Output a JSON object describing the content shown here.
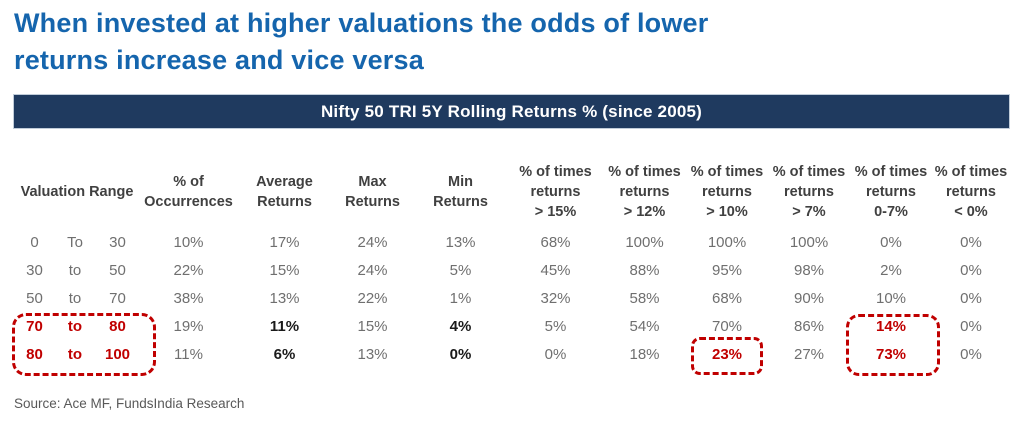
{
  "title": "When invested at higher valuations the odds of lower\nreturns increase and vice versa",
  "banner": {
    "text": "Nifty 50 TRI 5Y Rolling Returns % (since 2005)"
  },
  "table": {
    "range_header": "Valuation Range",
    "column_headers": [
      [
        "% of",
        "Occurrences"
      ],
      [
        "Average",
        "Returns"
      ],
      [
        "Max",
        "Returns"
      ],
      [
        "Min",
        "Returns"
      ],
      [
        "% of times",
        "returns",
        "> 15%"
      ],
      [
        "% of times",
        "returns",
        "> 12%"
      ],
      [
        "% of times",
        "returns",
        "> 10%"
      ],
      [
        "% of times",
        "returns",
        "> 7%"
      ],
      [
        "% of times",
        "returns",
        "0-7%"
      ],
      [
        "% of times",
        "returns",
        "< 0%"
      ]
    ],
    "rows": [
      {
        "range": [
          "0",
          "To",
          "30"
        ],
        "range_style": "normal",
        "values": [
          "10%",
          "17%",
          "24%",
          "13%",
          "68%",
          "100%",
          "100%",
          "100%",
          "0%",
          "0%"
        ],
        "bold_values": [],
        "red_values": []
      },
      {
        "range": [
          "30",
          "to",
          "50"
        ],
        "range_style": "normal",
        "values": [
          "22%",
          "15%",
          "24%",
          "5%",
          "45%",
          "88%",
          "95%",
          "98%",
          "2%",
          "0%"
        ],
        "bold_values": [],
        "red_values": []
      },
      {
        "range": [
          "50",
          "to",
          "70"
        ],
        "range_style": "normal",
        "values": [
          "38%",
          "13%",
          "22%",
          "1%",
          "32%",
          "58%",
          "68%",
          "90%",
          "10%",
          "0%"
        ],
        "bold_values": [],
        "red_values": []
      },
      {
        "range": [
          "70",
          "to",
          "80"
        ],
        "range_style": "red",
        "values": [
          "19%",
          "11%",
          "15%",
          "4%",
          "5%",
          "54%",
          "70%",
          "86%",
          "14%",
          "0%"
        ],
        "bold_values": [
          1,
          3
        ],
        "red_values": [
          8
        ]
      },
      {
        "range": [
          "80",
          "to",
          "100"
        ],
        "range_style": "red",
        "values": [
          "11%",
          "6%",
          "13%",
          "0%",
          "0%",
          "18%",
          "23%",
          "27%",
          "73%",
          "0%"
        ],
        "bold_values": [
          1,
          3
        ],
        "red_values": [
          6,
          8
        ]
      }
    ]
  },
  "source": "Source: Ace MF, FundsIndia Research",
  "colors": {
    "title_blue": "#1565ad",
    "banner_navy": "#1f3a5f",
    "highlight_red": "#c00000",
    "body_gray": "#6f6f6f",
    "header_gray": "#404040"
  },
  "chart_data": {
    "type": "table",
    "title": "Nifty 50 TRI 5Y Rolling Returns % (since 2005)",
    "columns": [
      "Valuation Range",
      "% of Occurrences",
      "Average Returns",
      "Max Returns",
      "Min Returns",
      "% of times returns > 15%",
      "% of times returns > 12%",
      "% of times returns > 10%",
      "% of times returns > 7%",
      "% of times returns 0-7%",
      "% of times returns < 0%"
    ],
    "rows": [
      [
        "0 To 30",
        "10%",
        "17%",
        "24%",
        "13%",
        "68%",
        "100%",
        "100%",
        "100%",
        "0%",
        "0%"
      ],
      [
        "30 to 50",
        "22%",
        "15%",
        "24%",
        "5%",
        "45%",
        "88%",
        "95%",
        "98%",
        "2%",
        "0%"
      ],
      [
        "50 to 70",
        "38%",
        "13%",
        "22%",
        "1%",
        "32%",
        "58%",
        "68%",
        "90%",
        "10%",
        "0%"
      ],
      [
        "70 to 80",
        "19%",
        "11%",
        "15%",
        "4%",
        "5%",
        "54%",
        "70%",
        "86%",
        "14%",
        "0%"
      ],
      [
        "80 to 100",
        "11%",
        "6%",
        "13%",
        "0%",
        "0%",
        "18%",
        "23%",
        "27%",
        "73%",
        "0%"
      ]
    ],
    "annotations": "Red dashed boxes highlight valuation ranges 70-80 and 80-100, the 23% cell (>10% col, 80-100 row), and the 14%/73% cells (0-7% column)"
  }
}
